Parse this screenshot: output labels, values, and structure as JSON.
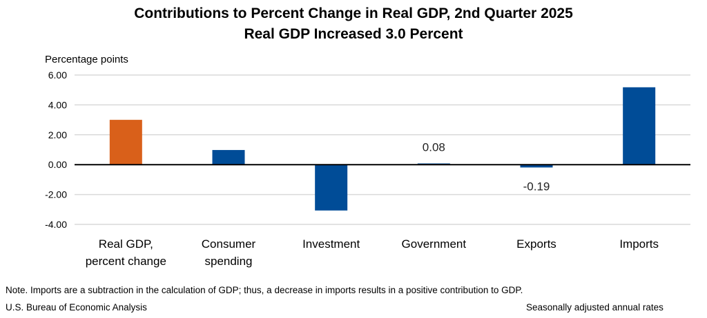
{
  "chart_data": {
    "type": "bar",
    "title": "Contributions to Percent Change in Real GDP, 2nd Quarter 2025",
    "subtitle": "Real GDP Increased 3.0 Percent",
    "ylabel": "Percentage points",
    "xlabel": "",
    "categories": [
      [
        "Real GDP,",
        "percent change"
      ],
      [
        "Consumer",
        "spending"
      ],
      [
        "Investment"
      ],
      [
        "Government"
      ],
      [
        "Exports"
      ],
      [
        "Imports"
      ]
    ],
    "values": [
      3.0,
      0.98,
      -3.07,
      0.08,
      -0.19,
      5.18
    ],
    "colors": [
      "#D9601A",
      "#004C97",
      "#004C97",
      "#004C97",
      "#004C97",
      "#004C97"
    ],
    "data_labels": [
      "",
      "",
      "",
      "0.08",
      "-0.19",
      ""
    ],
    "ylim": [
      -4,
      6
    ],
    "yticks": [
      "6.00",
      "4.00",
      "2.00",
      "0.00",
      "-2.00",
      "-4.00"
    ],
    "ytick_values": [
      6,
      4,
      2,
      0,
      -2,
      -4
    ],
    "grid": true,
    "legend": "none"
  },
  "footer": {
    "note": "Note. Imports are a subtraction in the calculation of GDP; thus, a decrease in imports results in a positive contribution to GDP.",
    "source": "U.S. Bureau of Economic Analysis",
    "rates": "Seasonally adjusted annual rates"
  }
}
